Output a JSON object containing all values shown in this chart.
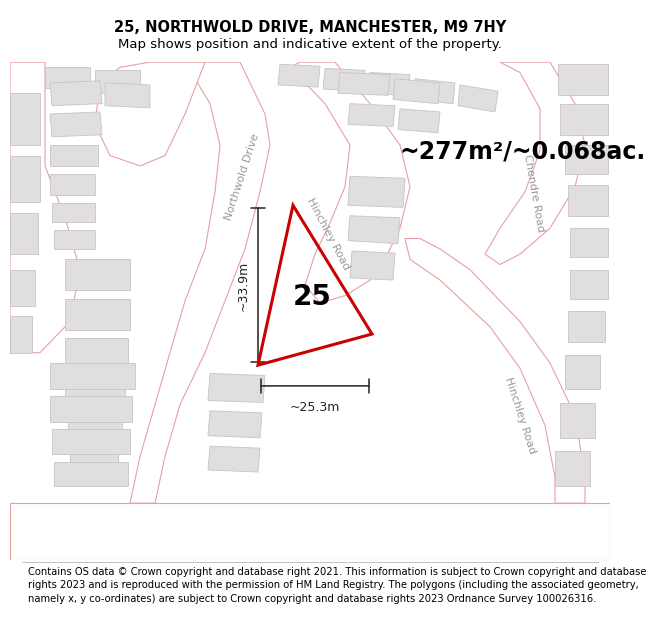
{
  "title_line1": "25, NORTHWOLD DRIVE, MANCHESTER, M9 7HY",
  "title_line2": "Map shows position and indicative extent of the property.",
  "area_text": "~277m²/~0.068ac.",
  "property_number": "25",
  "dim_width": "~25.3m",
  "dim_height": "~33.9m",
  "map_bg": "#f0eeee",
  "road_fill": "#ffffff",
  "road_stroke": "#e8a0a0",
  "building_fill": "#e0dede",
  "building_stroke": "#c8c4c4",
  "property_stroke": "#cc0000",
  "footer_text": "Contains OS data © Crown copyright and database right 2021. This information is subject to Crown copyright and database rights 2023 and is reproduced with the permission of HM Land Registry. The polygons (including the associated geometry, namely x, y co-ordinates) are subject to Crown copyright and database rights 2023 Ordnance Survey 100026316.",
  "title_fontsize": 10.5,
  "subtitle_fontsize": 9.5,
  "area_fontsize": 17,
  "footer_fontsize": 7.2,
  "property_label_fontsize": 20,
  "road_label_fontsize": 8,
  "road_label_color": "#999999",
  "dim_line_color": "#222222",
  "dim_fontsize": 9
}
